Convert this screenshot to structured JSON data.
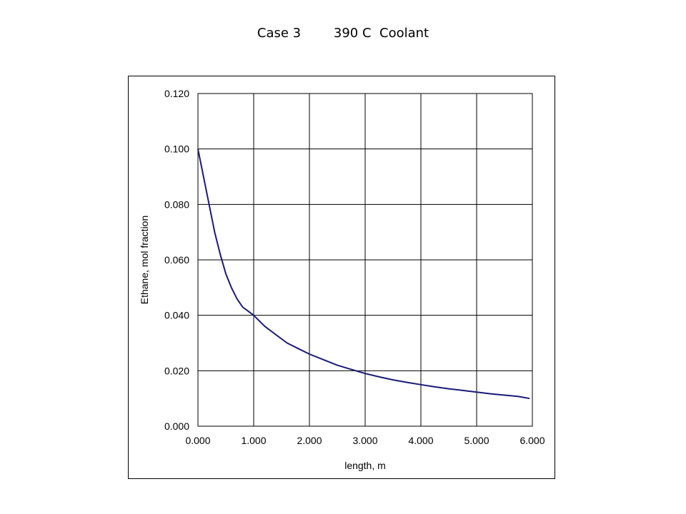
{
  "title": "Case 3        390 C  Coolant",
  "chart_data": {
    "type": "line",
    "title": "Case 3        390 C  Coolant",
    "xlabel": "length, m",
    "ylabel": "Ethane, mol fraction",
    "xlim": [
      0,
      6
    ],
    "ylim": [
      0,
      0.12
    ],
    "x_ticks": [
      "0.000",
      "1.000",
      "2.000",
      "3.000",
      "4.000",
      "5.000",
      "6.000"
    ],
    "y_ticks": [
      "0.000",
      "0.020",
      "0.040",
      "0.060",
      "0.080",
      "0.100",
      "0.120"
    ],
    "grid": true,
    "legend": "none",
    "series": [
      {
        "color": "#1a1a7a",
        "x": [
          0.0,
          0.1,
          0.2,
          0.3,
          0.4,
          0.5,
          0.6,
          0.7,
          0.8,
          0.9,
          1.0,
          1.2,
          1.4,
          1.6,
          1.8,
          2.0,
          2.25,
          2.5,
          2.75,
          3.0,
          3.25,
          3.5,
          3.75,
          4.0,
          4.25,
          4.5,
          4.75,
          5.0,
          5.25,
          5.5,
          5.75,
          5.95
        ],
        "y": [
          0.1,
          0.09,
          0.08,
          0.07,
          0.062,
          0.055,
          0.05,
          0.046,
          0.043,
          0.0415,
          0.04,
          0.036,
          0.033,
          0.03,
          0.028,
          0.026,
          0.024,
          0.022,
          0.0205,
          0.019,
          0.0178,
          0.0167,
          0.0158,
          0.015,
          0.0142,
          0.0135,
          0.0129,
          0.0123,
          0.0117,
          0.0112,
          0.0107,
          0.01
        ]
      }
    ]
  }
}
